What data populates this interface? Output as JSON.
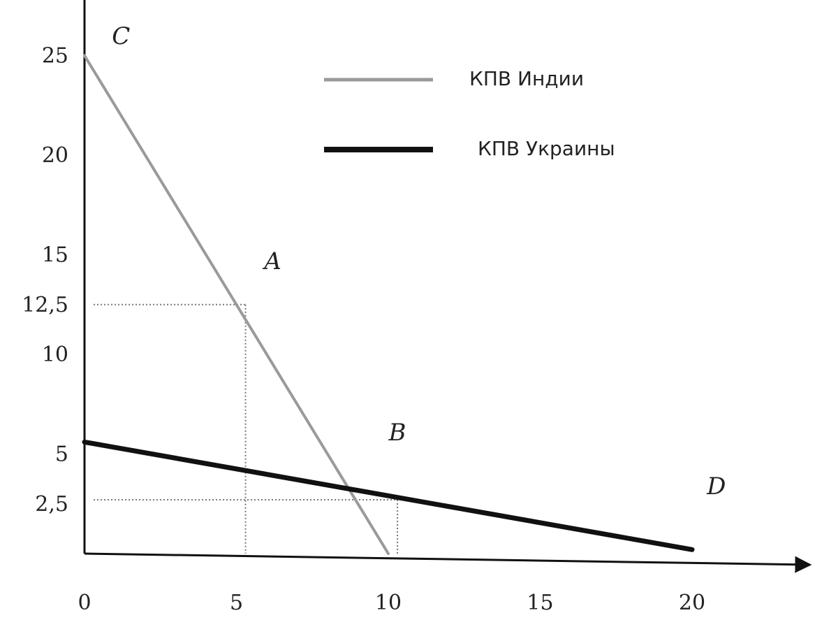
{
  "chart_data": {
    "type": "line",
    "title": "",
    "xlabel": "",
    "ylabel": "",
    "xlim": [
      0,
      22
    ],
    "ylim": [
      0,
      27
    ],
    "x_ticks": [
      "0",
      "5",
      "10",
      "15",
      "20"
    ],
    "y_ticks": [
      "25",
      "20",
      "15",
      "12,5",
      "10",
      "5",
      "2,5"
    ],
    "series": [
      {
        "name": "КПВ Индии",
        "color": "#9a9a9a",
        "points": [
          [
            0,
            25
          ],
          [
            10,
            0
          ]
        ]
      },
      {
        "name": "КПВ Украины",
        "color": "#111111",
        "points": [
          [
            0,
            5.6
          ],
          [
            20,
            0.2
          ]
        ]
      }
    ],
    "point_labels": [
      {
        "text": "C",
        "x": 1.2,
        "y": 26.0
      },
      {
        "text": "A",
        "x": 6.2,
        "y": 14.7
      },
      {
        "text": "B",
        "x": 10.3,
        "y": 6.1
      },
      {
        "text": "D",
        "x": 20.8,
        "y": 3.4
      }
    ],
    "guides": [
      {
        "from": [
          0.3,
          12.5
        ],
        "to": [
          5.3,
          12.5
        ]
      },
      {
        "from": [
          5.3,
          12.5
        ],
        "to": [
          5.3,
          0
        ]
      },
      {
        "from": [
          0.3,
          2.7
        ],
        "to": [
          10.3,
          2.7
        ]
      },
      {
        "from": [
          10.3,
          2.7
        ],
        "to": [
          10.3,
          0
        ]
      }
    ],
    "legend_position": "top-center",
    "grid": false
  }
}
